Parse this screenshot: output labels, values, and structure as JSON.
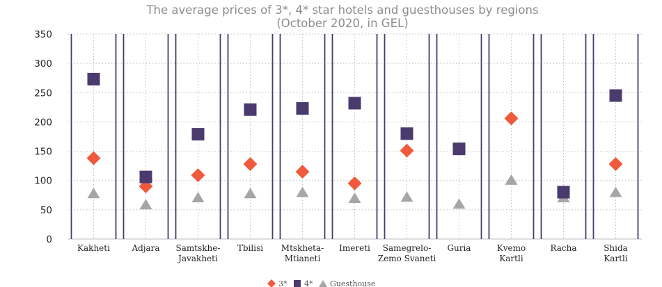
{
  "chart_data": {
    "type": "scatter",
    "title": "The average prices of 3*, 4* star hotels and guesthouses by regions",
    "subtitle": "(October 2020, in GEL)",
    "xlabel": "",
    "ylabel": "",
    "categories": [
      [
        "Kakheti"
      ],
      [
        "Adjara"
      ],
      [
        "Samtskhe-",
        "Javakheti"
      ],
      [
        "Tbilisi"
      ],
      [
        "Mtskheta-",
        "Mtianeti"
      ],
      [
        "Imereti"
      ],
      [
        "Samegrelo-",
        "Zemo Svaneti"
      ],
      [
        "Guria"
      ],
      [
        "Kvemo",
        "Kartli"
      ],
      [
        "Racha"
      ],
      [
        "Shida",
        "Kartli"
      ]
    ],
    "y_ticks": [
      "0",
      "50",
      "100",
      "150",
      "200",
      "250",
      "300",
      "350"
    ],
    "ylim": [
      0,
      350
    ],
    "grid": true,
    "legend_position": "bottom",
    "series": [
      {
        "name": "3*",
        "marker": "diamond",
        "color": "#f05a3c",
        "values": [
          138,
          null,
          109,
          128,
          115,
          95,
          151,
          null,
          206,
          null,
          128
        ]
      },
      {
        "name": "4*",
        "marker": "square",
        "color": "#4a3a6e",
        "values": [
          273,
          106,
          179,
          221,
          223,
          232,
          180,
          154,
          null,
          80,
          245
        ]
      },
      {
        "name": "Guesthouse",
        "marker": "triangle",
        "color": "#a6a6a6",
        "values": [
          78,
          59,
          71,
          78,
          80,
          70,
          72,
          60,
          101,
          71,
          80
        ]
      }
    ],
    "extra_points": [
      {
        "series": "3*",
        "category_index": 1,
        "value": 90
      }
    ]
  }
}
